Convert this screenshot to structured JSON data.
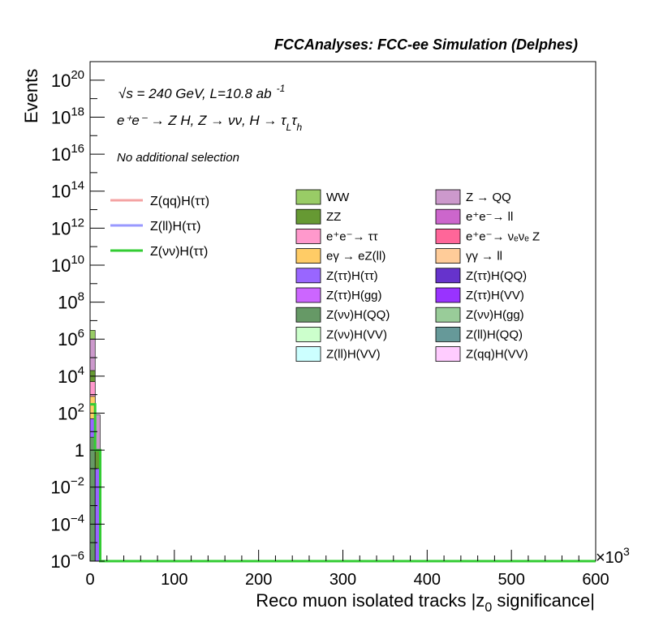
{
  "header": "FCCAnalyses: FCC-ee Simulation (Delphes)",
  "chart_data": {
    "type": "bar",
    "xlabel": "Reco muon isolated tracks |z",
    "xlabel_sub": "0",
    "xlabel_tail": " significance|",
    "ylabel": "Events",
    "x_multiplier": "×10",
    "x_multiplier_exp": "3",
    "xlim": [
      0,
      600
    ],
    "ylim": [
      1e-06,
      1e+21
    ],
    "yscale": "log",
    "x_ticks": [
      "0",
      "100",
      "200",
      "300",
      "400",
      "500",
      "600"
    ],
    "y_ticks": [
      {
        "v": 1e-06,
        "base": "10",
        "exp": "−6"
      },
      {
        "v": 0.0001,
        "base": "10",
        "exp": "−4"
      },
      {
        "v": 0.01,
        "base": "10",
        "exp": "−2"
      },
      {
        "v": 1,
        "base": "1",
        "exp": ""
      },
      {
        "v": 100.0,
        "base": "10",
        "exp": "2"
      },
      {
        "v": 10000.0,
        "base": "10",
        "exp": "4"
      },
      {
        "v": 1000000.0,
        "base": "10",
        "exp": "6"
      },
      {
        "v": 100000000.0,
        "base": "10",
        "exp": "8"
      },
      {
        "v": 10000000000.0,
        "base": "10",
        "exp": "10"
      },
      {
        "v": 1000000000000.0,
        "base": "10",
        "exp": "12"
      },
      {
        "v": 100000000000000.0,
        "base": "10",
        "exp": "14"
      },
      {
        "v": 1e+16,
        "base": "10",
        "exp": "16"
      },
      {
        "v": 1e+18,
        "base": "10",
        "exp": "18"
      },
      {
        "v": 1e+20,
        "base": "10",
        "exp": "20"
      }
    ],
    "annotations": {
      "energy": "√s = 240 GeV, L=10.8 ab",
      "energy_exp": "-1",
      "process": "e⁺e⁻ → Z H, Z → νν, H → τ",
      "process_sub1": "L",
      "process_tau": "τ",
      "process_sub2": "h",
      "selection": "No additional selection"
    },
    "signal_series": [
      {
        "name": "Z(qq)H(ττ)",
        "color": "#f4a3a3"
      },
      {
        "name": "Z(ll)H(ττ)",
        "color": "#9999ff"
      },
      {
        "name": "Z(νν)H(ττ)",
        "color": "#33cc33"
      }
    ],
    "background_series": [
      {
        "name": "WW",
        "color": "#99cc66"
      },
      {
        "name": "Z → QQ",
        "color": "#cc99cc"
      },
      {
        "name": "ZZ",
        "color": "#669933"
      },
      {
        "name": "e⁺e⁻→ ll",
        "color": "#cc66cc"
      },
      {
        "name": "e⁺e⁻→ ττ",
        "color": "#ff99cc"
      },
      {
        "name": "e⁺e⁻→ νₑνₑ Z",
        "color": "#ff6699"
      },
      {
        "name": "eγ → eZ(ll)",
        "color": "#ffcc66"
      },
      {
        "name": "γγ → ll",
        "color": "#ffcc99"
      },
      {
        "name": "Z(ττ)H(ττ)",
        "color": "#9966ff"
      },
      {
        "name": "Z(ττ)H(QQ)",
        "color": "#6633cc"
      },
      {
        "name": "Z(ττ)H(gg)",
        "color": "#cc66ff"
      },
      {
        "name": "Z(ττ)H(VV)",
        "color": "#9933ff"
      },
      {
        "name": "Z(νν)H(QQ)",
        "color": "#669966"
      },
      {
        "name": "Z(νν)H(gg)",
        "color": "#99cc99"
      },
      {
        "name": "Z(νν)H(VV)",
        "color": "#ccffcc"
      },
      {
        "name": "Z(ll)H(QQ)",
        "color": "#669999"
      },
      {
        "name": "Z(ll)H(VV)",
        "color": "#ccffff"
      },
      {
        "name": "Z(qq)H(VV)",
        "color": "#ffccff"
      }
    ],
    "stack_bins": [
      {
        "x0": 0,
        "x1": 6,
        "layers": [
          {
            "series": "WW",
            "top": 3000000.0
          },
          {
            "series": "Z → QQ",
            "top": 1000000.0
          },
          {
            "series": "ZZ",
            "top": 20000.0
          },
          {
            "series": "e⁺e⁻→ ττ",
            "top": 5000.0
          },
          {
            "series": "eγ → eZ(ll)",
            "top": 800.0
          },
          {
            "series": "Z(ττ)H(ττ)",
            "top": 50
          },
          {
            "series": "Z(νν)H(QQ)",
            "top": 5
          }
        ]
      },
      {
        "x0": 6,
        "x1": 12,
        "layers": [
          {
            "series": "Z → QQ",
            "top": 80
          },
          {
            "series": "ZZ",
            "top": 1
          },
          {
            "series": "Z(ττ)H(ττ)",
            "top": 0.1
          }
        ]
      }
    ],
    "signal_line": {
      "series": "Z(νν)H(ττ)",
      "x": [
        0,
        6,
        6,
        12,
        12,
        600
      ],
      "y": [
        300,
        300,
        1,
        1,
        1e-06,
        1e-06
      ]
    }
  }
}
